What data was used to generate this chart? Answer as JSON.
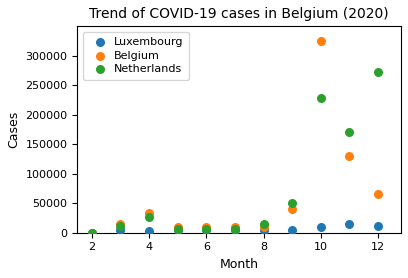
{
  "title": "Trend of COVID-19 cases in Belgium (2020)",
  "xlabel": "Month",
  "ylabel": "Cases",
  "series": {
    "Luxembourg": {
      "color": "#1f77b4",
      "months": [
        2,
        3,
        4,
        5,
        6,
        7,
        8,
        9,
        10,
        11,
        12
      ],
      "cases": [
        0,
        4000,
        3800,
        4000,
        4200,
        4500,
        5000,
        4500,
        10000,
        15000,
        11000
      ]
    },
    "Belgium": {
      "color": "#ff7f0e",
      "months": [
        2,
        3,
        4,
        5,
        6,
        7,
        8,
        9,
        10,
        11,
        12
      ],
      "cases": [
        0,
        15000,
        33000,
        9000,
        10000,
        9000,
        9000,
        40000,
        325000,
        130000,
        65000
      ]
    },
    "Netherlands": {
      "color": "#2ca02c",
      "months": [
        2,
        3,
        4,
        5,
        6,
        7,
        8,
        9,
        10,
        11,
        12
      ],
      "cases": [
        0,
        12000,
        26000,
        7000,
        6000,
        6000,
        15000,
        50000,
        228000,
        170000,
        272000
      ]
    }
  },
  "xlim": [
    1.5,
    12.8
  ],
  "ylim": [
    0,
    350000
  ],
  "yticks": [
    0,
    50000,
    100000,
    150000,
    200000,
    250000,
    300000
  ],
  "xticks": [
    2,
    4,
    6,
    8,
    10,
    12
  ],
  "figsize": [
    4.08,
    2.78
  ],
  "dpi": 100,
  "title_fontsize": 10,
  "label_fontsize": 9,
  "tick_fontsize": 8,
  "legend_fontsize": 8,
  "marker_size": 30
}
